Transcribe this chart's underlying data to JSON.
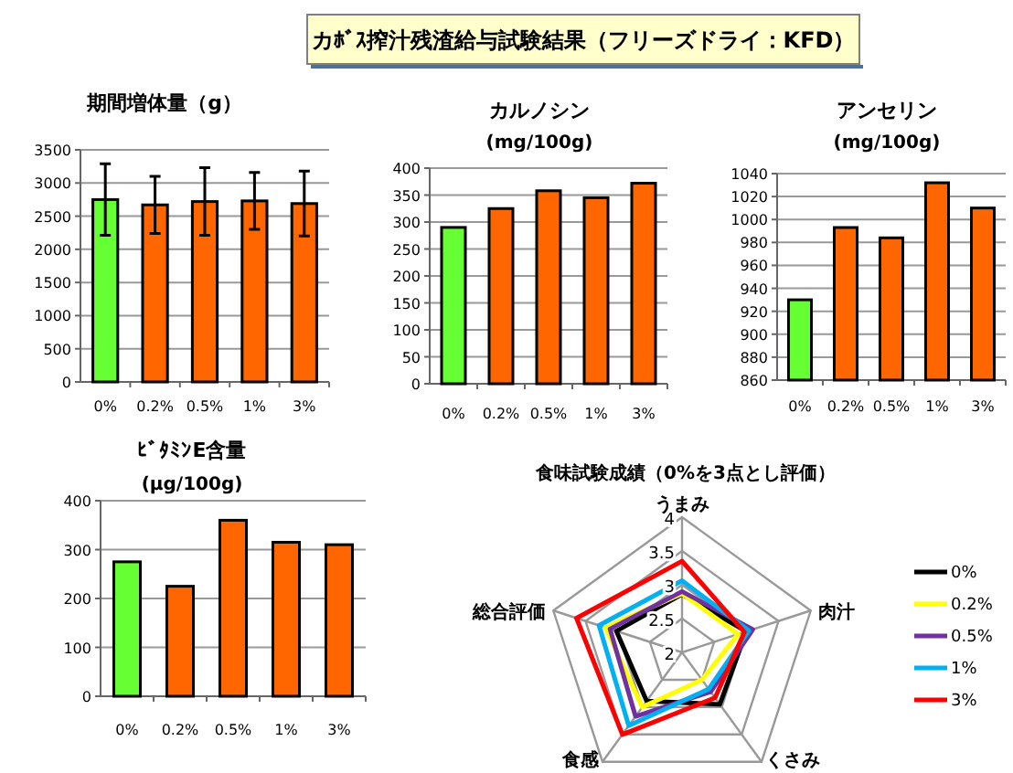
{
  "chart_data": [
    {
      "type": "other",
      "title": "カﾎﾞｽ搾汁残渣給与試験結果（フリーズドライ：KFD）"
    },
    {
      "type": "bar",
      "title": "期間増体量（g）",
      "categories": [
        "0%",
        "0.2%",
        "0.5%",
        "1%",
        "3%"
      ],
      "values": [
        2750,
        2670,
        2720,
        2730,
        2690
      ],
      "errors": [
        540,
        430,
        510,
        430,
        490
      ],
      "colors": [
        "#66ff33",
        "#ff6600",
        "#ff6600",
        "#ff6600",
        "#ff6600"
      ],
      "ylim": [
        0,
        3500
      ],
      "yticks": [
        0,
        500,
        1000,
        1500,
        2000,
        2500,
        3000,
        3500
      ],
      "grid": "y"
    },
    {
      "type": "bar",
      "title": "カルノシン",
      "subtitle": "(mg/100g)",
      "categories": [
        "0%",
        "0.2%",
        "0.5%",
        "1%",
        "3%"
      ],
      "values": [
        290,
        325,
        358,
        345,
        372
      ],
      "colors": [
        "#66ff33",
        "#ff6600",
        "#ff6600",
        "#ff6600",
        "#ff6600"
      ],
      "ylim": [
        0,
        400
      ],
      "yticks": [
        0,
        50,
        100,
        150,
        200,
        250,
        300,
        350,
        400
      ],
      "grid": "y"
    },
    {
      "type": "bar",
      "title": "アンセリン",
      "subtitle": "(mg/100g)",
      "categories": [
        "0%",
        "0.2%",
        "0.5%",
        "1%",
        "3%"
      ],
      "values": [
        930,
        993,
        984,
        1032,
        1010
      ],
      "colors": [
        "#66ff33",
        "#ff6600",
        "#ff6600",
        "#ff6600",
        "#ff6600"
      ],
      "ylim": [
        860,
        1040
      ],
      "yticks": [
        860,
        880,
        900,
        920,
        940,
        960,
        980,
        1000,
        1020,
        1040
      ],
      "grid": "y"
    },
    {
      "type": "bar",
      "title": "ﾋﾞﾀﾐﾝE含量",
      "subtitle": "(µg/100g)",
      "categories": [
        "0%",
        "0.2%",
        "0.5%",
        "1%",
        "3%"
      ],
      "values": [
        275,
        225,
        360,
        315,
        310
      ],
      "colors": [
        "#66ff33",
        "#ff6600",
        "#ff6600",
        "#ff6600",
        "#ff6600"
      ],
      "ylim": [
        0,
        400
      ],
      "yticks": [
        0,
        100,
        200,
        300,
        400
      ],
      "grid": "y"
    },
    {
      "type": "radar",
      "title": "食味試験成績（0%を3点とし評価）",
      "categories": [
        "うまみ",
        "肉汁",
        "くさみ",
        "食感",
        "総合評価"
      ],
      "ylim": [
        2,
        4
      ],
      "yticks": [
        2,
        2.5,
        3,
        3.5,
        4
      ],
      "legend": "right",
      "series": [
        {
          "name": "0%",
          "color": "#000000",
          "values": [
            2.86,
            3.0,
            2.95,
            2.89,
            3.02
          ]
        },
        {
          "name": "0.2%",
          "color": "#ffff00",
          "values": [
            2.87,
            2.87,
            2.5,
            3.0,
            3.19
          ]
        },
        {
          "name": "0.5%",
          "color": "#7030a0",
          "values": [
            2.9,
            3.1,
            2.72,
            3.17,
            3.12
          ]
        },
        {
          "name": "1%",
          "color": "#00b0f0",
          "values": [
            3.06,
            3.04,
            2.67,
            3.34,
            3.29
          ]
        },
        {
          "name": "3%",
          "color": "#ff0000",
          "values": [
            3.35,
            2.97,
            2.83,
            3.5,
            3.64
          ]
        }
      ]
    }
  ]
}
